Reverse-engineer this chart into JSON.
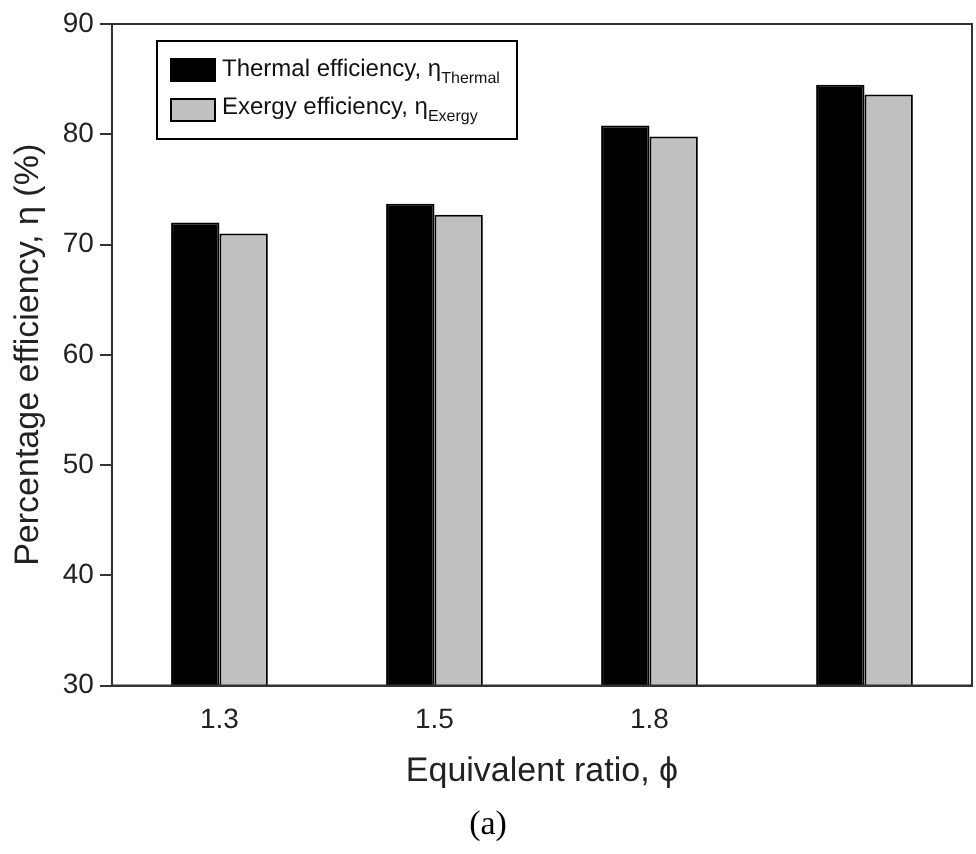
{
  "chart_data": {
    "type": "bar",
    "xlabel": "Equivalent ratio, ϕ",
    "ylabel": "Percentage efficiency, η (%)",
    "categories": [
      "1.3",
      "1.5",
      "1.8",
      null
    ],
    "series": [
      {
        "name": "Thermal efficiency, η$_{Thermal}$",
        "color": "#000000",
        "values": [
          72.0,
          73.7,
          80.8,
          84.5
        ]
      },
      {
        "name": "Exergy efficiency, η$_{Exergy}$",
        "color": "#c0c0c0",
        "values": [
          71.0,
          72.7,
          79.8,
          83.6
        ]
      }
    ],
    "ylim": [
      30,
      90
    ],
    "yticks": [
      30,
      40,
      50,
      60,
      70,
      80,
      90
    ],
    "grid": false,
    "legend": "top left",
    "annotations": [
      "(a)"
    ]
  }
}
